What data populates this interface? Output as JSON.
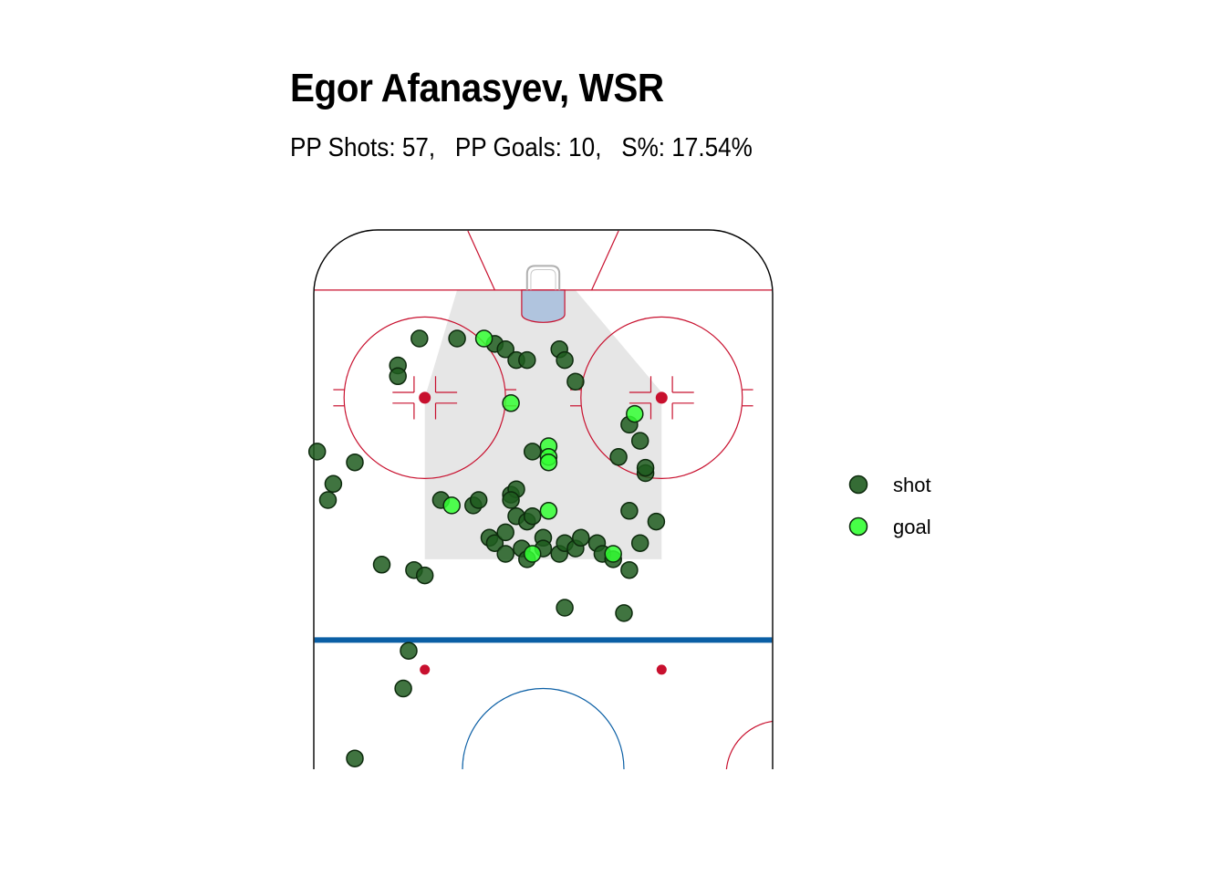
{
  "chart_data": {
    "type": "scatter",
    "title": "Egor Afanasyev, WSR",
    "subtitle": "PP Shots: 57,   PP Goals: 10,   S%: 17.54%",
    "legend": {
      "position": "right",
      "entries": [
        {
          "label": "shot",
          "color": "#1f5c1f"
        },
        {
          "label": "goal",
          "color": "#33ff33"
        }
      ]
    },
    "rink_colors": {
      "red": "#c8102e",
      "blue": "#0b5fa5",
      "board": "#000000",
      "crease": "#b0c4de",
      "slot": "#e6e6e6"
    },
    "series": [
      {
        "name": "shot",
        "points": [
          [
            -16,
            80
          ],
          [
            -9,
            79
          ],
          [
            -7,
            78
          ],
          [
            -5,
            76
          ],
          [
            -3,
            76
          ],
          [
            3,
            78
          ],
          [
            4,
            76
          ],
          [
            6,
            72
          ],
          [
            -23,
            80
          ],
          [
            -27,
            75
          ],
          [
            -27,
            73
          ],
          [
            16,
            64
          ],
          [
            18,
            61
          ],
          [
            14,
            58
          ],
          [
            19,
            55
          ],
          [
            19,
            56
          ],
          [
            -2,
            59
          ],
          [
            -35,
            57
          ],
          [
            -42,
            59
          ],
          [
            -39,
            53
          ],
          [
            -40,
            50
          ],
          [
            -19,
            50
          ],
          [
            -13,
            49
          ],
          [
            -12,
            50
          ],
          [
            -6,
            51
          ],
          [
            -5,
            52
          ],
          [
            -6,
            50
          ],
          [
            -10,
            43
          ],
          [
            -9,
            42
          ],
          [
            -7,
            44
          ],
          [
            -5,
            47
          ],
          [
            -3,
            46
          ],
          [
            -2,
            47
          ],
          [
            0,
            43
          ],
          [
            -7,
            40
          ],
          [
            -4,
            41
          ],
          [
            -3,
            39
          ],
          [
            0,
            41
          ],
          [
            3,
            40
          ],
          [
            4,
            42
          ],
          [
            6,
            41
          ],
          [
            7,
            43
          ],
          [
            10,
            42
          ],
          [
            11,
            40
          ],
          [
            13,
            39
          ],
          [
            16,
            37
          ],
          [
            18,
            42
          ],
          [
            16,
            48
          ],
          [
            21,
            46
          ],
          [
            -30,
            38
          ],
          [
            -24,
            37
          ],
          [
            -22,
            36
          ],
          [
            4,
            30
          ],
          [
            15,
            29
          ],
          [
            -25,
            22
          ],
          [
            -26,
            15
          ],
          [
            -35,
            2
          ]
        ]
      },
      {
        "name": "goal",
        "points": [
          [
            -11,
            80
          ],
          [
            -6,
            68
          ],
          [
            1,
            60
          ],
          [
            1,
            58
          ],
          [
            1,
            57
          ],
          [
            17,
            66
          ],
          [
            -17,
            49
          ],
          [
            1,
            48
          ],
          [
            -2,
            40
          ],
          [
            13,
            40
          ]
        ]
      }
    ]
  }
}
